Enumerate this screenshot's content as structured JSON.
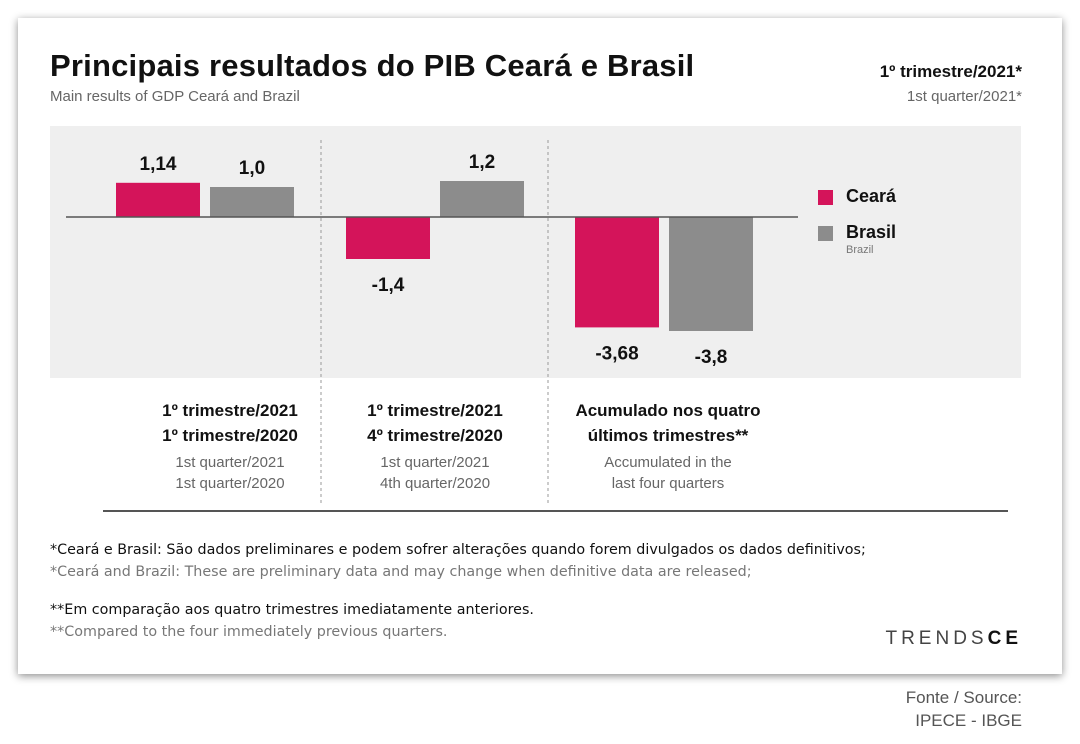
{
  "header": {
    "title": "Principais resultados do PIB Ceará e Brasil",
    "subtitle": "Main results of GDP Ceará and Brazil",
    "period": "1º trimestre/2021*",
    "period_en": "1st quarter/2021*"
  },
  "legend": {
    "ceara": "Ceará",
    "brasil": "Brasil",
    "brasil_en": "Brazil"
  },
  "colors": {
    "ceara": "#d4145a",
    "brasil": "#8c8c8c",
    "plot_background": "#efefef",
    "zero_line": "#555555",
    "separator": "#999999"
  },
  "chart_data": {
    "type": "bar",
    "categories": [
      "1º trimestre/2021 1º trimestre/2020",
      "1º trimestre/2021 4º trimestre/2020",
      "Acumulado nos quatro últimos trimestres**"
    ],
    "series": [
      {
        "name": "Ceará",
        "values": [
          1.14,
          -1.4,
          -3.68
        ],
        "labels": [
          "1,14",
          "-1,4",
          "-3,68"
        ]
      },
      {
        "name": "Brasil",
        "values": [
          1.0,
          1.2,
          -3.8
        ],
        "labels": [
          "1,0",
          "1,2",
          "-3,8"
        ]
      }
    ],
    "legend_position": "right",
    "grid": false
  },
  "groups": [
    {
      "line1": "1º trimestre/2021",
      "line2": "1º trimestre/2020",
      "en1": "1st quarter/2021",
      "en2": "1st quarter/2020"
    },
    {
      "line1": "1º trimestre/2021",
      "line2": "4º trimestre/2020",
      "en1": "1st quarter/2021",
      "en2": "4th quarter/2020"
    },
    {
      "line1": "Acumulado nos quatro",
      "line2": "últimos trimestres**",
      "en1": "Accumulated in the",
      "en2": "last four quarters"
    }
  ],
  "notes": {
    "note1_pt": "*Ceará e Brasil: São dados preliminares e podem sofrer alterações quando forem divulgados os dados definitivos;",
    "note1_en": "*Ceará and Brazil: These are preliminary data and may change when definitive data are released;",
    "note2_pt": "**Em comparação aos quatro trimestres imediatamente anteriores.",
    "note2_en": "**Compared to the four immediately previous quarters."
  },
  "brand": {
    "part1": "TRENDS",
    "part2": "CE"
  },
  "source": {
    "label": "Fonte / Source:",
    "value": "IPECE - IBGE"
  }
}
